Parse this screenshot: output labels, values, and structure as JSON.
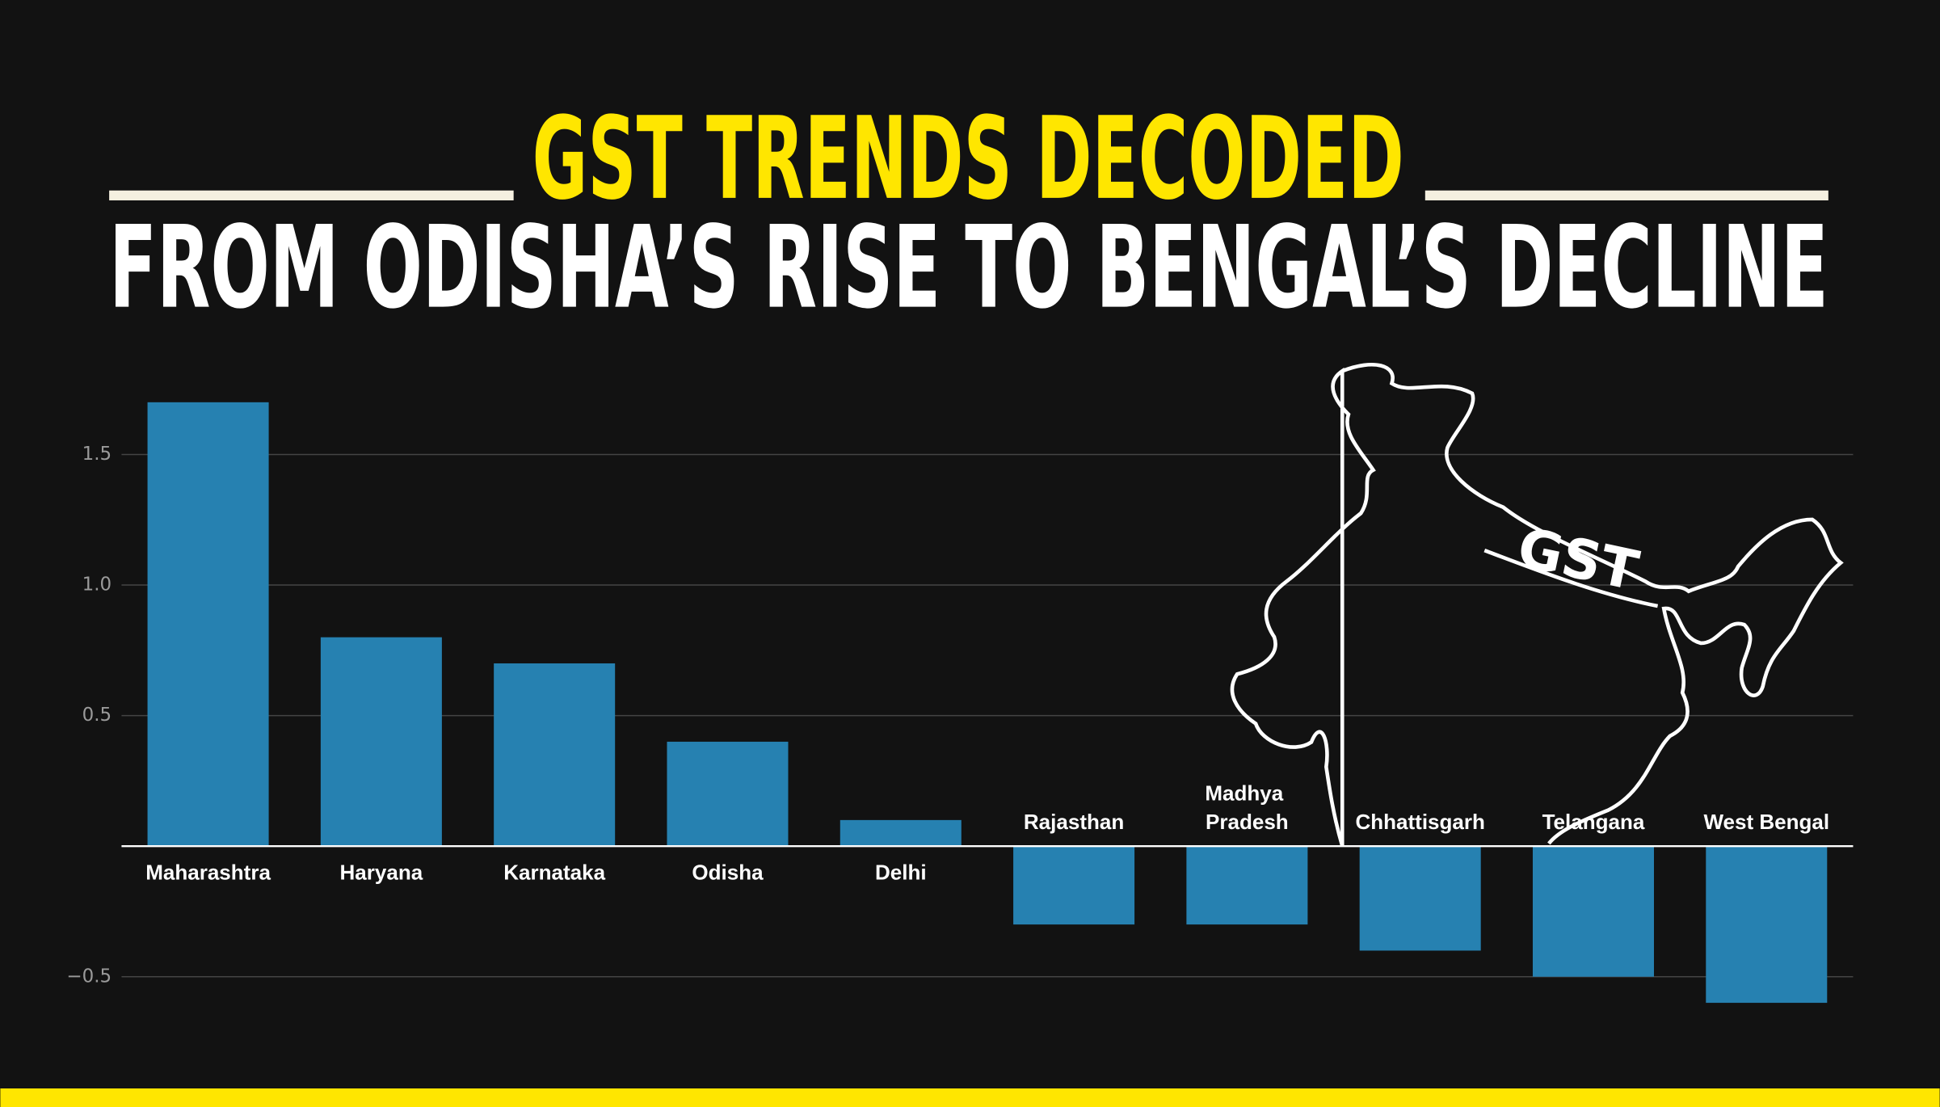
{
  "chart_data": {
    "type": "bar",
    "title": "GST TRENDS DECODED",
    "subtitle": "FROM ODISHA’S RISE TO BENGAL’S DECLINE",
    "annotation": "GST",
    "categories": [
      "Maharashtra",
      "Haryana",
      "Karnataka",
      "Odisha",
      "Delhi",
      "Rajasthan",
      "Madhya Pradesh",
      "Chhattisgarh",
      "Telangana",
      "West Bengal"
    ],
    "values": [
      1.7,
      0.8,
      0.7,
      0.4,
      0.1,
      -0.3,
      -0.3,
      -0.4,
      -0.5,
      -0.6
    ],
    "color": "#2681b1",
    "ylim": [
      -0.62,
      1.72
    ],
    "yticks": [
      {
        "value": -0.5,
        "label": "−0.5"
      },
      0.5,
      {
        "value": 1,
        "label": "1.0"
      },
      1.5
    ],
    "grid": true
  }
}
